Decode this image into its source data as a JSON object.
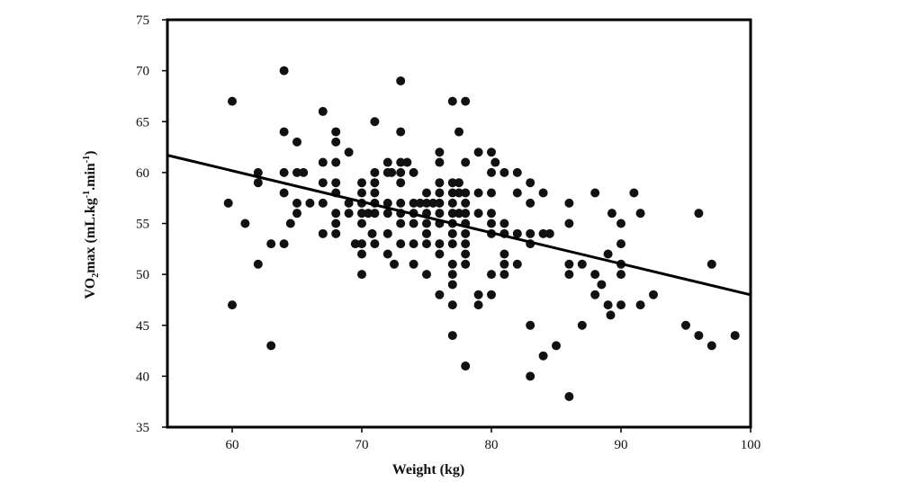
{
  "chart_data": {
    "type": "scatter",
    "title": "",
    "xlabel": "Weight (kg)",
    "ylabel": "VO2max (mL.kg-1.min-1)",
    "ylabel_parts": {
      "base": "VO",
      "sub": "2",
      "mid": "max (mL.kg",
      "sup1": "-1",
      "dot": ".min",
      "sup2": "-1",
      "end": ")"
    },
    "xlim": [
      55,
      100
    ],
    "ylim": [
      35,
      75
    ],
    "x_ticks": [
      60,
      70,
      80,
      90,
      100
    ],
    "y_ticks": [
      35,
      40,
      45,
      50,
      55,
      60,
      65,
      70,
      75
    ],
    "grid": false,
    "legend": "none",
    "point_color": "#111111",
    "trend_line": {
      "x": [
        55,
        100
      ],
      "y": [
        61.7,
        48.0
      ]
    },
    "points": [
      [
        59.7,
        57
      ],
      [
        60,
        67
      ],
      [
        60,
        47
      ],
      [
        61,
        55
      ],
      [
        62,
        60
      ],
      [
        62,
        59
      ],
      [
        62,
        51
      ],
      [
        63,
        53
      ],
      [
        63,
        43
      ],
      [
        64,
        70
      ],
      [
        64,
        64
      ],
      [
        64,
        60
      ],
      [
        64,
        58
      ],
      [
        64,
        53
      ],
      [
        64.5,
        55
      ],
      [
        65,
        63
      ],
      [
        65,
        60
      ],
      [
        65,
        57
      ],
      [
        65,
        56
      ],
      [
        65.5,
        60
      ],
      [
        66,
        57
      ],
      [
        67,
        66
      ],
      [
        67,
        61
      ],
      [
        67,
        59
      ],
      [
        67,
        57
      ],
      [
        67,
        54
      ],
      [
        68,
        64
      ],
      [
        68,
        63
      ],
      [
        68,
        61
      ],
      [
        68,
        59
      ],
      [
        68,
        58
      ],
      [
        68,
        56
      ],
      [
        68,
        55
      ],
      [
        68,
        54
      ],
      [
        69,
        62
      ],
      [
        69,
        57
      ],
      [
        69,
        56
      ],
      [
        69.5,
        53
      ],
      [
        70,
        59
      ],
      [
        70,
        58
      ],
      [
        70,
        57
      ],
      [
        70,
        56
      ],
      [
        70,
        55
      ],
      [
        70,
        53
      ],
      [
        70,
        52
      ],
      [
        70,
        50
      ],
      [
        70.5,
        56
      ],
      [
        70.8,
        54
      ],
      [
        71,
        65
      ],
      [
        71,
        60
      ],
      [
        71,
        59
      ],
      [
        71,
        58
      ],
      [
        71,
        57
      ],
      [
        71,
        56
      ],
      [
        71,
        53
      ],
      [
        72,
        61
      ],
      [
        72,
        60
      ],
      [
        72,
        57
      ],
      [
        72,
        56
      ],
      [
        72,
        54
      ],
      [
        72,
        52
      ],
      [
        72.3,
        60
      ],
      [
        72.5,
        51
      ],
      [
        73,
        69
      ],
      [
        73,
        64
      ],
      [
        73,
        61
      ],
      [
        73,
        60
      ],
      [
        73,
        59
      ],
      [
        73,
        57
      ],
      [
        73,
        56
      ],
      [
        73,
        55
      ],
      [
        73,
        53
      ],
      [
        73.5,
        61
      ],
      [
        74,
        60
      ],
      [
        74,
        57
      ],
      [
        74,
        56
      ],
      [
        74,
        55
      ],
      [
        74,
        53
      ],
      [
        74,
        51
      ],
      [
        74.5,
        57
      ],
      [
        75,
        58
      ],
      [
        75,
        57
      ],
      [
        75,
        56
      ],
      [
        75,
        55
      ],
      [
        75,
        54
      ],
      [
        75,
        53
      ],
      [
        75,
        50
      ],
      [
        75.5,
        57
      ],
      [
        76,
        62
      ],
      [
        76,
        61
      ],
      [
        76,
        59
      ],
      [
        76,
        58
      ],
      [
        76,
        57
      ],
      [
        76,
        56
      ],
      [
        76,
        55
      ],
      [
        76,
        53
      ],
      [
        76,
        52
      ],
      [
        76,
        48
      ],
      [
        77,
        67
      ],
      [
        77,
        59
      ],
      [
        77,
        58
      ],
      [
        77,
        57
      ],
      [
        77,
        56
      ],
      [
        77,
        55
      ],
      [
        77,
        54
      ],
      [
        77,
        53
      ],
      [
        77,
        51
      ],
      [
        77,
        50
      ],
      [
        77,
        49
      ],
      [
        77,
        47
      ],
      [
        77,
        44
      ],
      [
        77.5,
        64
      ],
      [
        77.5,
        59
      ],
      [
        77.5,
        58
      ],
      [
        77.5,
        56
      ],
      [
        78,
        67
      ],
      [
        78,
        61
      ],
      [
        78,
        58
      ],
      [
        78,
        57
      ],
      [
        78,
        56
      ],
      [
        78,
        55
      ],
      [
        78,
        54
      ],
      [
        78,
        53
      ],
      [
        78,
        52
      ],
      [
        78,
        51
      ],
      [
        78,
        41
      ],
      [
        79,
        62
      ],
      [
        79,
        58
      ],
      [
        79,
        56
      ],
      [
        79,
        48
      ],
      [
        79,
        47
      ],
      [
        80,
        62
      ],
      [
        80,
        60
      ],
      [
        80,
        58
      ],
      [
        80,
        56
      ],
      [
        80,
        55
      ],
      [
        80,
        54
      ],
      [
        80,
        50
      ],
      [
        80,
        48
      ],
      [
        80.3,
        61
      ],
      [
        81,
        60
      ],
      [
        81,
        55
      ],
      [
        81,
        54
      ],
      [
        81,
        52
      ],
      [
        81,
        51
      ],
      [
        81,
        50
      ],
      [
        82,
        60
      ],
      [
        82,
        58
      ],
      [
        82,
        54
      ],
      [
        82,
        51
      ],
      [
        83,
        59
      ],
      [
        83,
        57
      ],
      [
        83,
        54
      ],
      [
        83,
        53
      ],
      [
        83,
        45
      ],
      [
        83,
        40
      ],
      [
        84,
        58
      ],
      [
        84,
        54
      ],
      [
        84,
        42
      ],
      [
        84.5,
        54
      ],
      [
        85,
        43
      ],
      [
        86,
        57
      ],
      [
        86,
        55
      ],
      [
        86,
        51
      ],
      [
        86,
        50
      ],
      [
        86,
        38
      ],
      [
        87,
        51
      ],
      [
        87,
        45
      ],
      [
        88,
        58
      ],
      [
        88,
        50
      ],
      [
        88,
        48
      ],
      [
        88.5,
        49
      ],
      [
        89,
        52
      ],
      [
        89,
        47
      ],
      [
        89.2,
        46
      ],
      [
        89.3,
        56
      ],
      [
        90,
        55
      ],
      [
        90,
        53
      ],
      [
        90,
        51
      ],
      [
        90,
        50
      ],
      [
        90,
        47
      ],
      [
        91,
        58
      ],
      [
        91.5,
        56
      ],
      [
        91.5,
        47
      ],
      [
        92.5,
        48
      ],
      [
        95,
        45
      ],
      [
        96,
        56
      ],
      [
        96,
        44
      ],
      [
        97,
        51
      ],
      [
        97,
        43
      ],
      [
        98.8,
        44
      ]
    ]
  }
}
